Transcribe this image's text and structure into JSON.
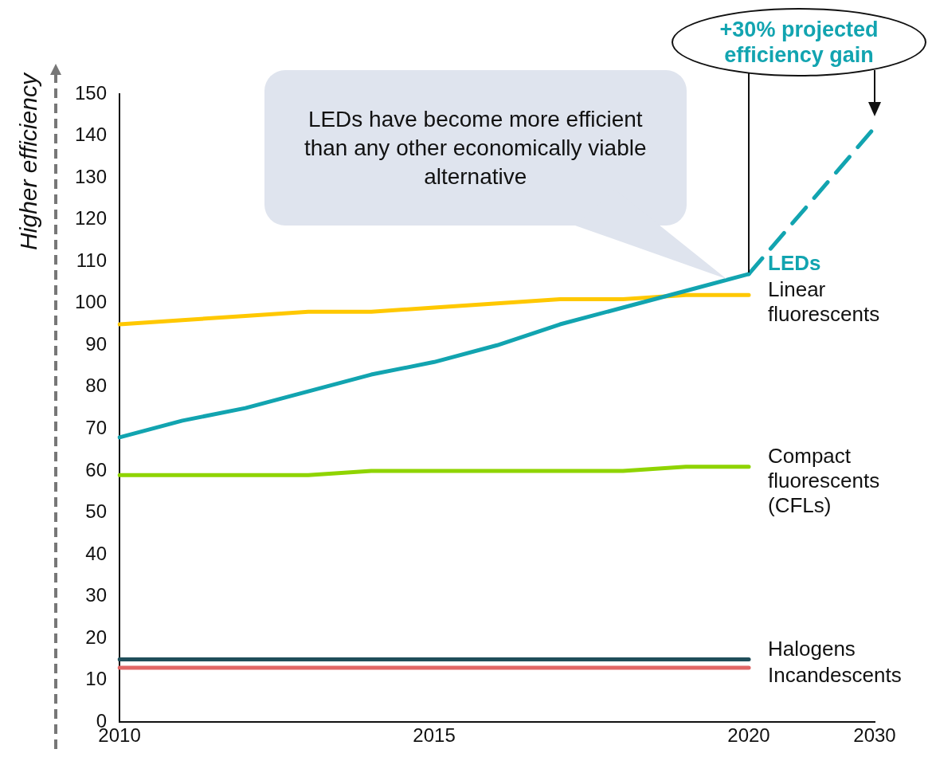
{
  "chart_data": {
    "type": "line",
    "ylabel": "Higher efficiency",
    "categories": [
      "2010",
      null,
      null,
      null,
      null,
      "2015",
      null,
      null,
      null,
      null,
      "2020",
      null,
      "2030"
    ],
    "ylim": [
      0,
      150
    ],
    "yticks": [
      0,
      10,
      20,
      30,
      40,
      50,
      60,
      70,
      80,
      90,
      100,
      110,
      120,
      130,
      140,
      150
    ],
    "grid": false,
    "marker": "none",
    "series": [
      {
        "name": "LEDs",
        "color": "#12a4b0",
        "values": [
          68,
          72,
          75,
          79,
          83,
          86,
          90,
          95,
          99,
          103,
          107,
          null,
          null
        ]
      },
      {
        "color": "#12a4b0",
        "line_style": "dashed",
        "values": [
          null,
          null,
          null,
          null,
          null,
          null,
          null,
          null,
          null,
          null,
          107,
          null,
          142
        ]
      },
      {
        "name": "Linear fluorescents",
        "color": "#ffc800",
        "values": [
          95,
          96,
          97,
          98,
          98,
          99,
          100,
          101,
          101,
          102,
          102,
          null,
          null
        ]
      },
      {
        "name": "Compact fluorescents (CFLs)",
        "color": "#8fd400",
        "values": [
          59,
          59,
          59,
          59,
          60,
          60,
          60,
          60,
          60,
          61,
          61,
          null,
          null
        ]
      },
      {
        "name": "Halogens",
        "color": "#1f4e5a",
        "values": [
          15,
          15,
          15,
          15,
          15,
          15,
          15,
          15,
          15,
          15,
          15,
          null,
          null
        ]
      },
      {
        "name": "Incandescents",
        "color": "#e06666",
        "values": [
          13,
          13,
          13,
          13,
          13,
          13,
          13,
          13,
          13,
          13,
          13,
          null,
          null
        ]
      }
    ],
    "annotations": [
      "LEDs have become more efficient than any other economically viable alternative",
      {
        "text": "+30% projected efficiency gain",
        "x": "2030",
        "y": 142
      }
    ]
  }
}
